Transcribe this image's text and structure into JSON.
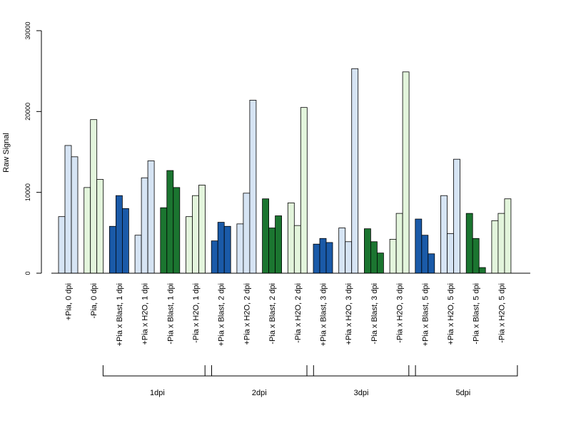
{
  "chart_data": {
    "type": "bar",
    "ylabel": "Raw Signal",
    "ylim": [
      0,
      30000
    ],
    "yticks": [
      0,
      10000,
      20000,
      30000
    ],
    "colors": {
      "dark_blue": "#1a5aa8",
      "light_blue": "#d6e4f4",
      "dark_green": "#1b7530",
      "light_green": "#e3f5dc"
    },
    "categories": [
      {
        "label": "+Pia, 0 dpi",
        "color": "light_blue",
        "values": [
          7000,
          15800,
          14400
        ]
      },
      {
        "label": "-Pia, 0 dpi",
        "color": "light_green",
        "values": [
          10600,
          19000,
          11600
        ]
      },
      {
        "label": "+Pia x Blast, 1 dpi",
        "color": "dark_blue",
        "values": [
          5800,
          9600,
          8000
        ]
      },
      {
        "label": "+Pia x H2O, 1 dpi",
        "color": "light_blue",
        "values": [
          4700,
          11800,
          13900
        ]
      },
      {
        "label": "-Pia x Blast, 1 dpi",
        "color": "dark_green",
        "values": [
          8100,
          12700,
          10600
        ]
      },
      {
        "label": "-Pia x H2O, 1 dpi",
        "color": "light_green",
        "values": [
          7000,
          9600,
          10900
        ]
      },
      {
        "label": "+Pia x Blast, 2 dpi",
        "color": "dark_blue",
        "values": [
          4000,
          6300,
          5800
        ]
      },
      {
        "label": "+Pia x H2O, 2 dpi",
        "color": "light_blue",
        "values": [
          6100,
          9900,
          21400
        ]
      },
      {
        "label": "-Pia x Blast, 2 dpi",
        "color": "dark_green",
        "values": [
          9200,
          5600,
          7100
        ]
      },
      {
        "label": "-Pia x H2O, 2 dpi",
        "color": "light_green",
        "values": [
          8700,
          5900,
          20500
        ]
      },
      {
        "label": "+Pia x Blast, 3 dpi",
        "color": "dark_blue",
        "values": [
          3600,
          4300,
          3800
        ]
      },
      {
        "label": "+Pia x H2O, 3 dpi",
        "color": "light_blue",
        "values": [
          5600,
          3900,
          25300
        ]
      },
      {
        "label": "-Pia x Blast, 3 dpi",
        "color": "dark_green",
        "values": [
          5500,
          3900,
          2500
        ]
      },
      {
        "label": "-Pia x H2O, 3 dpi",
        "color": "light_green",
        "values": [
          4200,
          7400,
          24900
        ]
      },
      {
        "label": "+Pia x Blast, 5 dpi",
        "color": "dark_blue",
        "values": [
          6700,
          4700,
          2400
        ]
      },
      {
        "label": "+Pia x H2O, 5 dpi",
        "color": "light_blue",
        "values": [
          9600,
          4900,
          14100
        ]
      },
      {
        "label": "-Pia x Blast, 5 dpi",
        "color": "dark_green",
        "values": [
          7400,
          4300,
          700
        ]
      },
      {
        "label": "-Pia x H2O, 5 dpi",
        "color": "light_green",
        "values": [
          6500,
          7400,
          9200
        ]
      }
    ],
    "groups": [
      {
        "label": "1dpi",
        "from": 2,
        "to": 5
      },
      {
        "label": "2dpi",
        "from": 6,
        "to": 9
      },
      {
        "label": "3dpi",
        "from": 10,
        "to": 13
      },
      {
        "label": "5dpi",
        "from": 14,
        "to": 17
      }
    ]
  }
}
